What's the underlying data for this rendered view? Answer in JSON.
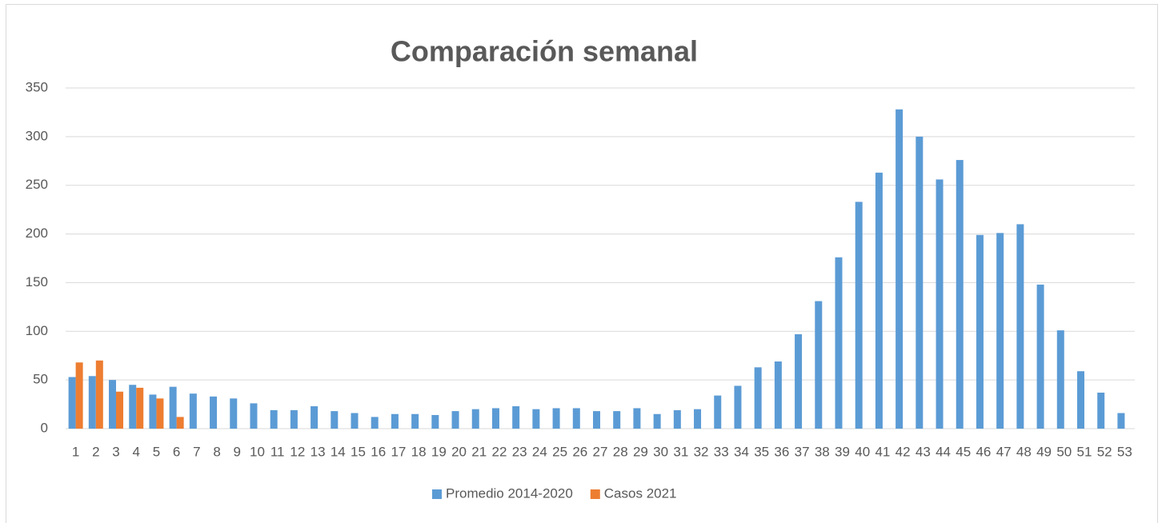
{
  "chart_data": {
    "type": "bar",
    "title": "Comparación semanal",
    "categories": [
      "1",
      "2",
      "3",
      "4",
      "5",
      "6",
      "7",
      "8",
      "9",
      "10",
      "11",
      "12",
      "13",
      "14",
      "15",
      "16",
      "17",
      "18",
      "19",
      "20",
      "21",
      "22",
      "23",
      "24",
      "25",
      "26",
      "27",
      "28",
      "29",
      "30",
      "31",
      "32",
      "33",
      "34",
      "35",
      "36",
      "37",
      "38",
      "39",
      "40",
      "41",
      "42",
      "43",
      "44",
      "45",
      "46",
      "47",
      "48",
      "49",
      "50",
      "51",
      "52",
      "53"
    ],
    "series": [
      {
        "name": "Promedio 2014-2020",
        "color": "#5b9bd5",
        "values": [
          53,
          54,
          50,
          45,
          35,
          43,
          36,
          33,
          31,
          26,
          19,
          19,
          23,
          18,
          16,
          12,
          15,
          15,
          14,
          18,
          20,
          21,
          23,
          20,
          21,
          21,
          18,
          18,
          21,
          15,
          19,
          20,
          34,
          44,
          63,
          69,
          97,
          131,
          176,
          233,
          263,
          328,
          300,
          256,
          276,
          199,
          201,
          210,
          148,
          101,
          59,
          37,
          16
        ]
      },
      {
        "name": "Casos 2021",
        "color": "#ed7d31",
        "values": [
          68,
          70,
          38,
          42,
          31,
          12,
          null,
          null,
          null,
          null,
          null,
          null,
          null,
          null,
          null,
          null,
          null,
          null,
          null,
          null,
          null,
          null,
          null,
          null,
          null,
          null,
          null,
          null,
          null,
          null,
          null,
          null,
          null,
          null,
          null,
          null,
          null,
          null,
          null,
          null,
          null,
          null,
          null,
          null,
          null,
          null,
          null,
          null,
          null,
          null,
          null,
          null,
          null
        ]
      }
    ],
    "ylim": [
      0,
      350
    ],
    "yticks": [
      0,
      50,
      100,
      150,
      200,
      250,
      300,
      350
    ],
    "grid": true,
    "legend": "bottom"
  }
}
